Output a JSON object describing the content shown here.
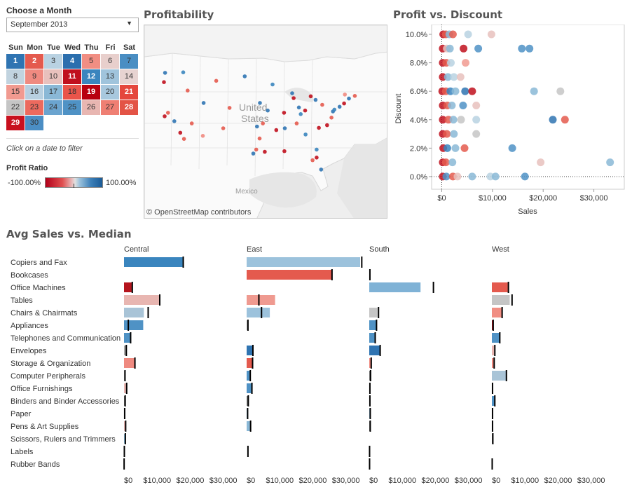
{
  "month_filter": {
    "label": "Choose a Month",
    "selected": "September 2013"
  },
  "calendar": {
    "weekdays": [
      "Sun",
      "Mon",
      "Tue",
      "Wed",
      "Thu",
      "Fri",
      "Sat"
    ],
    "days": [
      {
        "d": "1",
        "c": "#2f74b2",
        "t": "#fff"
      },
      {
        "d": "2",
        "c": "#e45a4e",
        "t": "#fff"
      },
      {
        "d": "3",
        "c": "#b9d2e2",
        "t": "#333"
      },
      {
        "d": "4",
        "c": "#2b6fae",
        "t": "#fff"
      },
      {
        "d": "5",
        "c": "#f18e83",
        "t": "#333"
      },
      {
        "d": "6",
        "c": "#e8cfcc",
        "t": "#333"
      },
      {
        "d": "7",
        "c": "#4a8ec3",
        "t": "#333"
      },
      {
        "d": "8",
        "c": "#c1d3df",
        "t": "#333"
      },
      {
        "d": "9",
        "c": "#ef8a80",
        "t": "#333"
      },
      {
        "d": "10",
        "c": "#e8c1bd",
        "t": "#333"
      },
      {
        "d": "11",
        "c": "#c0101d",
        "t": "#fff"
      },
      {
        "d": "12",
        "c": "#3a85be",
        "t": "#fff"
      },
      {
        "d": "13",
        "c": "#a0c4dc",
        "t": "#333"
      },
      {
        "d": "14",
        "c": "#e7d3d1",
        "t": "#333"
      },
      {
        "d": "15",
        "c": "#f19a90",
        "t": "#333"
      },
      {
        "d": "16",
        "c": "#b7cfe0",
        "t": "#333"
      },
      {
        "d": "17",
        "c": "#8ab8d6",
        "t": "#333"
      },
      {
        "d": "18",
        "c": "#e9544a",
        "t": "#333"
      },
      {
        "d": "19",
        "c": "#b8000f",
        "t": "#fff"
      },
      {
        "d": "20",
        "c": "#a8c8de",
        "t": "#333"
      },
      {
        "d": "21",
        "c": "#e5473d",
        "t": "#fff"
      },
      {
        "d": "22",
        "c": "#c5c5c5",
        "t": "#333"
      },
      {
        "d": "23",
        "c": "#ec6a5e",
        "t": "#333"
      },
      {
        "d": "24",
        "c": "#6ba4cf",
        "t": "#333"
      },
      {
        "d": "25",
        "c": "#4f92c5",
        "t": "#333"
      },
      {
        "d": "26",
        "c": "#e8b6b1",
        "t": "#333"
      },
      {
        "d": "27",
        "c": "#ef7f73",
        "t": "#333"
      },
      {
        "d": "28",
        "c": "#e35446",
        "t": "#fff"
      },
      {
        "d": "29",
        "c": "#c8101e",
        "t": "#fff"
      },
      {
        "d": "30",
        "c": "#4b8ec4",
        "t": "#333"
      }
    ],
    "hint": "Click on a date to filter"
  },
  "legend": {
    "title": "Profit Ratio",
    "min_label": "-100.00%",
    "max_label": "100.00%"
  },
  "map": {
    "title": "Profitability",
    "attribution": "© OpenStreetMap contributors",
    "labels": {
      "country": "United States",
      "country_line1": "United",
      "country_line2": "States",
      "mexico": "Mexico"
    },
    "points": [
      {
        "x": -122.3,
        "y": 47.6,
        "c": "#2f74b2"
      },
      {
        "x": -122.6,
        "y": 45.5,
        "c": "#c0101d"
      },
      {
        "x": -117.4,
        "y": 47.7,
        "c": "#3a85be"
      },
      {
        "x": -122.4,
        "y": 37.8,
        "c": "#c0101d"
      },
      {
        "x": -121.5,
        "y": 38.6,
        "c": "#e45a4e"
      },
      {
        "x": -118.2,
        "y": 34.1,
        "c": "#c0101d"
      },
      {
        "x": -117.2,
        "y": 32.7,
        "c": "#e45a4e"
      },
      {
        "x": -115.1,
        "y": 36.2,
        "c": "#e45a4e"
      },
      {
        "x": -112.1,
        "y": 33.4,
        "c": "#ef8a80"
      },
      {
        "x": -111.9,
        "y": 40.8,
        "c": "#2f74b2"
      },
      {
        "x": -104.9,
        "y": 39.7,
        "c": "#e45a4e"
      },
      {
        "x": -106.6,
        "y": 35.1,
        "c": "#e45a4e"
      },
      {
        "x": -96.8,
        "y": 32.8,
        "c": "#e45a4e"
      },
      {
        "x": -95.4,
        "y": 29.8,
        "c": "#c0101d"
      },
      {
        "x": -97.7,
        "y": 30.3,
        "c": "#e45a4e"
      },
      {
        "x": -98.5,
        "y": 29.4,
        "c": "#2f74b2"
      },
      {
        "x": -97.5,
        "y": 35.5,
        "c": "#2f74b2"
      },
      {
        "x": -94.6,
        "y": 39.1,
        "c": "#2f74b2"
      },
      {
        "x": -93.3,
        "y": 44.98,
        "c": "#3a85be"
      },
      {
        "x": -87.6,
        "y": 41.9,
        "c": "#c0101d"
      },
      {
        "x": -90.2,
        "y": 38.6,
        "c": "#c0101d"
      },
      {
        "x": -86.2,
        "y": 39.8,
        "c": "#2f74b2"
      },
      {
        "x": -83.0,
        "y": 42.3,
        "c": "#c0101d"
      },
      {
        "x": -81.7,
        "y": 41.5,
        "c": "#2f74b2"
      },
      {
        "x": -84.4,
        "y": 33.7,
        "c": "#3a85be"
      },
      {
        "x": -86.8,
        "y": 36.2,
        "c": "#e45a4e"
      },
      {
        "x": -90.0,
        "y": 35.1,
        "c": "#2f74b2"
      },
      {
        "x": -90.1,
        "y": 29.95,
        "c": "#c0101d"
      },
      {
        "x": -81.4,
        "y": 30.3,
        "c": "#3a85be"
      },
      {
        "x": -82.5,
        "y": 27.9,
        "c": "#e45a4e"
      },
      {
        "x": -81.4,
        "y": 28.5,
        "c": "#c0101d"
      },
      {
        "x": -80.2,
        "y": 25.8,
        "c": "#2f74b2"
      },
      {
        "x": -80.8,
        "y": 35.2,
        "c": "#c0101d"
      },
      {
        "x": -77.0,
        "y": 38.9,
        "c": "#2f74b2"
      },
      {
        "x": -76.6,
        "y": 39.3,
        "c": "#3a85be"
      },
      {
        "x": -75.2,
        "y": 39.95,
        "c": "#2f74b2"
      },
      {
        "x": -74.0,
        "y": 40.7,
        "c": "#c0101d"
      },
      {
        "x": -71.1,
        "y": 42.4,
        "c": "#e45a4e"
      },
      {
        "x": -73.8,
        "y": 42.7,
        "c": "#ef8a80"
      },
      {
        "x": -100.8,
        "y": 46.8,
        "c": "#2f74b2"
      },
      {
        "x": -108.5,
        "y": 45.8,
        "c": "#e45a4e"
      },
      {
        "x": -96.7,
        "y": 40.8,
        "c": "#2f74b2"
      },
      {
        "x": -88.0,
        "y": 43.0,
        "c": "#2f74b2"
      },
      {
        "x": -85.7,
        "y": 38.3,
        "c": "#3a85be"
      },
      {
        "x": -79.9,
        "y": 40.4,
        "c": "#e45a4e"
      },
      {
        "x": -77.4,
        "y": 37.5,
        "c": "#e45a4e"
      },
      {
        "x": -78.6,
        "y": 35.8,
        "c": "#c0101d"
      },
      {
        "x": -92.3,
        "y": 34.7,
        "c": "#c0101d"
      },
      {
        "x": -95.9,
        "y": 36.2,
        "c": "#e45a4e"
      },
      {
        "x": -84.5,
        "y": 39.1,
        "c": "#c0101d"
      },
      {
        "x": -72.7,
        "y": 41.8,
        "c": "#2f74b2"
      },
      {
        "x": -116.2,
        "y": 43.6,
        "c": "#e45a4e"
      },
      {
        "x": -119.8,
        "y": 36.7,
        "c": "#2f74b2"
      }
    ]
  },
  "scatter": {
    "title": "Profit vs. Discount",
    "chart_data": {
      "type": "scatter",
      "title": "Profit vs. Discount",
      "xlabel": "Sales",
      "ylabel": "Discount",
      "xlim": [
        -2000,
        36000
      ],
      "ylim": [
        -0.002,
        0.1
      ],
      "x_ticks": [
        {
          "v": 0,
          "label": "$0"
        },
        {
          "v": 10000,
          "label": "$10,000"
        },
        {
          "v": 20000,
          "label": "$20,000"
        },
        {
          "v": 30000,
          "label": "$30,000"
        }
      ],
      "y_ticks": [
        {
          "v": 0,
          "label": "0.0%"
        },
        {
          "v": 0.02,
          "label": "2.0%"
        },
        {
          "v": 0.04,
          "label": "4.0%"
        },
        {
          "v": 0.06,
          "label": "6.0%"
        },
        {
          "v": 0.08,
          "label": "8.0%"
        },
        {
          "v": 0.1,
          "label": "10.0%"
        }
      ],
      "points": [
        {
          "x": 300,
          "y": 0.1,
          "c": "#c0101d"
        },
        {
          "x": 800,
          "y": 0.1,
          "c": "#e45a4e"
        },
        {
          "x": 1500,
          "y": 0.1,
          "c": "#8ab8d6"
        },
        {
          "x": 2200,
          "y": 0.1,
          "c": "#e45a4e"
        },
        {
          "x": 5200,
          "y": 0.1,
          "c": "#b9d2e2"
        },
        {
          "x": 9800,
          "y": 0.1,
          "c": "#e8c1bd"
        },
        {
          "x": 200,
          "y": 0.09,
          "c": "#c0101d"
        },
        {
          "x": 1000,
          "y": 0.09,
          "c": "#e8c1bd"
        },
        {
          "x": 1600,
          "y": 0.09,
          "c": "#8ab8d6"
        },
        {
          "x": 4300,
          "y": 0.09,
          "c": "#c0101d"
        },
        {
          "x": 7200,
          "y": 0.09,
          "c": "#4f92c5"
        },
        {
          "x": 15800,
          "y": 0.09,
          "c": "#4f92c5"
        },
        {
          "x": 17300,
          "y": 0.09,
          "c": "#4f92c5"
        },
        {
          "x": 200,
          "y": 0.08,
          "c": "#c0101d"
        },
        {
          "x": 900,
          "y": 0.08,
          "c": "#e45a4e"
        },
        {
          "x": 1800,
          "y": 0.08,
          "c": "#b9d2e2"
        },
        {
          "x": 4700,
          "y": 0.08,
          "c": "#f19a90"
        },
        {
          "x": 200,
          "y": 0.07,
          "c": "#c0101d"
        },
        {
          "x": 1200,
          "y": 0.07,
          "c": "#8ab8d6"
        },
        {
          "x": 2400,
          "y": 0.07,
          "c": "#b9d2e2"
        },
        {
          "x": 3700,
          "y": 0.07,
          "c": "#e8c1bd"
        },
        {
          "x": 100,
          "y": 0.06,
          "c": "#c0101d"
        },
        {
          "x": 800,
          "y": 0.06,
          "c": "#e45a4e"
        },
        {
          "x": 1700,
          "y": 0.06,
          "c": "#3a85be"
        },
        {
          "x": 2700,
          "y": 0.06,
          "c": "#8ab8d6"
        },
        {
          "x": 4600,
          "y": 0.06,
          "c": "#2f74b2"
        },
        {
          "x": 6000,
          "y": 0.06,
          "c": "#c0101d"
        },
        {
          "x": 18200,
          "y": 0.06,
          "c": "#8ab8d6"
        },
        {
          "x": 23400,
          "y": 0.06,
          "c": "#c5c5c5"
        },
        {
          "x": 200,
          "y": 0.05,
          "c": "#c0101d"
        },
        {
          "x": 1100,
          "y": 0.05,
          "c": "#e45a4e"
        },
        {
          "x": 2000,
          "y": 0.05,
          "c": "#8ab8d6"
        },
        {
          "x": 4200,
          "y": 0.05,
          "c": "#4f92c5"
        },
        {
          "x": 6800,
          "y": 0.05,
          "c": "#e8c1bd"
        },
        {
          "x": 200,
          "y": 0.04,
          "c": "#c0101d"
        },
        {
          "x": 1300,
          "y": 0.04,
          "c": "#e45a4e"
        },
        {
          "x": 2300,
          "y": 0.04,
          "c": "#8ab8d6"
        },
        {
          "x": 3800,
          "y": 0.04,
          "c": "#c5c5c5"
        },
        {
          "x": 6800,
          "y": 0.04,
          "c": "#b9d2e2"
        },
        {
          "x": 21900,
          "y": 0.04,
          "c": "#2f74b2"
        },
        {
          "x": 24300,
          "y": 0.04,
          "c": "#e45a4e"
        },
        {
          "x": 200,
          "y": 0.03,
          "c": "#c0101d"
        },
        {
          "x": 1000,
          "y": 0.03,
          "c": "#e45a4e"
        },
        {
          "x": 2400,
          "y": 0.03,
          "c": "#8ab8d6"
        },
        {
          "x": 6800,
          "y": 0.03,
          "c": "#c5c5c5"
        },
        {
          "x": 300,
          "y": 0.02,
          "c": "#c0101d"
        },
        {
          "x": 1100,
          "y": 0.02,
          "c": "#3a85be"
        },
        {
          "x": 2700,
          "y": 0.02,
          "c": "#8ab8d6"
        },
        {
          "x": 4500,
          "y": 0.02,
          "c": "#e45a4e"
        },
        {
          "x": 13900,
          "y": 0.02,
          "c": "#4f92c5"
        },
        {
          "x": 200,
          "y": 0.01,
          "c": "#c0101d"
        },
        {
          "x": 800,
          "y": 0.01,
          "c": "#e45a4e"
        },
        {
          "x": 2100,
          "y": 0.01,
          "c": "#8ab8d6"
        },
        {
          "x": 19500,
          "y": 0.01,
          "c": "#e8c1bd"
        },
        {
          "x": 33200,
          "y": 0.01,
          "c": "#8ab8d6"
        },
        {
          "x": 200,
          "y": 0.0,
          "c": "#c0101d"
        },
        {
          "x": 900,
          "y": 0.0,
          "c": "#4f92c5"
        },
        {
          "x": 2200,
          "y": 0.0,
          "c": "#e45a4e"
        },
        {
          "x": 3100,
          "y": 0.0,
          "c": "#e8c1bd"
        },
        {
          "x": 6000,
          "y": 0.0,
          "c": "#8ab8d6"
        },
        {
          "x": 9600,
          "y": 0.0,
          "c": "#b9d2e2"
        },
        {
          "x": 10600,
          "y": 0.0,
          "c": "#8ab8d6"
        },
        {
          "x": 16400,
          "y": 0.0,
          "c": "#4f92c5"
        }
      ]
    }
  },
  "sales": {
    "title": "Avg Sales vs. Median",
    "chart_data": {
      "type": "bar",
      "title": "Avg Sales vs. Median",
      "xlim": [
        0,
        36000
      ],
      "x_ticks": [
        {
          "v": 0,
          "label": "$0"
        },
        {
          "v": 10000,
          "label": "$10,000"
        },
        {
          "v": 20000,
          "label": "$20,000"
        },
        {
          "v": 30000,
          "label": "$30,000"
        }
      ],
      "categories": [
        "Copiers and Fax",
        "Bookcases",
        "Office Machines",
        "Tables",
        "Chairs & Chairmats",
        "Appliances",
        "Telephones and Communication",
        "Envelopes",
        "Storage & Organization",
        "Computer Peripherals",
        "Office Furnishings",
        "Binders and Binder Accessories",
        "Paper",
        "Pens & Art Supplies",
        "Scissors, Rulers and Trimmers",
        "Labels",
        "Rubber Bands"
      ],
      "series": [
        {
          "name": "Central",
          "values": [
            17700,
            0,
            2300,
            10800,
            6000,
            5800,
            1800,
            500,
            3200,
            300,
            800,
            350,
            150,
            500,
            300,
            80,
            20
          ],
          "medians": [
            17900,
            null,
            2500,
            10800,
            7300,
            1300,
            2000,
            700,
            3300,
            300,
            800,
            350,
            200,
            500,
            400,
            100,
            30
          ],
          "colors": [
            "#3a85be",
            null,
            "#b5141d",
            "#e8b6b1",
            "#a9c4d7",
            "#4f92c5",
            "#4f92c5",
            "#aaa",
            "#ef8a80",
            "#aaa",
            "#e8b6b1",
            "#777",
            "#e8b6b1",
            "#e8b6b1",
            "#8ab8d6",
            "#8ab8d6",
            "#aaa"
          ]
        },
        {
          "name": "East",
          "values": [
            34300,
            25800,
            0,
            8600,
            7000,
            400,
            0,
            1900,
            1600,
            1100,
            1600,
            500,
            300,
            1200,
            0,
            0,
            0
          ],
          "medians": [
            34800,
            25800,
            null,
            3700,
            4500,
            400,
            null,
            1900,
            1800,
            1100,
            1600,
            500,
            300,
            1200,
            null,
            400,
            null
          ],
          "colors": [
            "#9cc2dc",
            "#e45a4e",
            null,
            "#ef9a90",
            "#9cc2dc",
            "#aaa",
            null,
            "#2f74b2",
            "#e45a4e",
            "#4f92c5",
            "#4f92c5",
            "#777",
            "#8ab8d6",
            "#8ab8d6",
            null,
            "#777",
            null
          ]
        },
        {
          "name": "South",
          "values": [
            0,
            200,
            15500,
            0,
            2500,
            2100,
            1800,
            3200,
            600,
            400,
            200,
            200,
            200,
            200,
            0,
            100,
            80
          ],
          "medians": [
            null,
            200,
            19400,
            null,
            2800,
            2200,
            1800,
            3300,
            600,
            400,
            200,
            200,
            300,
            300,
            null,
            100,
            100
          ],
          "colors": [
            null,
            "#b5141d",
            "#7fb2d6",
            null,
            "#c5c5c5",
            "#4f92c5",
            "#4f92c5",
            "#2f74b2",
            "#ef8a80",
            "#777",
            "#777",
            "#b5141d",
            "#8ab8d6",
            "#777",
            null,
            "#777",
            "#4f92c5"
          ]
        },
        {
          "name": "West",
          "values": [
            0,
            0,
            4800,
            5400,
            3100,
            300,
            2500,
            700,
            500,
            4300,
            200,
            900,
            200,
            200,
            300,
            0,
            100
          ],
          "medians": [
            null,
            null,
            5000,
            6100,
            3100,
            400,
            2400,
            900,
            700,
            4400,
            200,
            900,
            200,
            200,
            300,
            null,
            100
          ],
          "colors": [
            null,
            null,
            "#e45a4e",
            "#c5c5c5",
            "#f18e83",
            "#b5141d",
            "#4f92c5",
            "#e8b6b1",
            "#ef8a80",
            "#a9c4d7",
            "#777",
            "#4f92c5",
            "#777",
            "#8ab8d6",
            "#777",
            null,
            "#777"
          ]
        }
      ]
    }
  }
}
